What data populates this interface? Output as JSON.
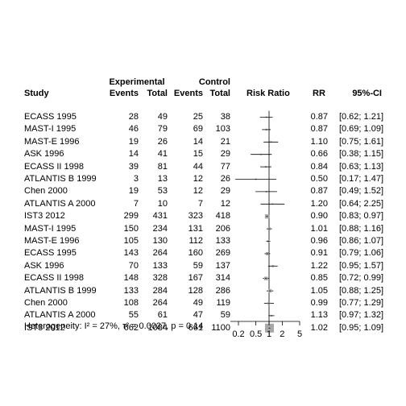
{
  "headers": {
    "experimental": "Experimental",
    "control": "Control",
    "study": "Study",
    "events_e": "Events",
    "total_e": "Total",
    "events_c": "Events",
    "total_c": "Total",
    "risk_ratio": "Risk Ratio",
    "rr": "RR",
    "ci": "95%-CI"
  },
  "footer": {
    "heterogeneity": "Heterogeneity: I² = 27%, τ² = 0.0027, p = 0.14"
  },
  "colors": {
    "square": "#a8a8a8",
    "line": "#000000",
    "axis": "#000000"
  },
  "chart_data": {
    "type": "forest",
    "x_scale": "log",
    "xlim": [
      0.17,
      6.0
    ],
    "x_ticks": [
      0.2,
      0.5,
      1,
      2,
      5
    ],
    "x_tick_labels": [
      "0.2",
      "0.5",
      "1",
      "2",
      "5"
    ],
    "reference_line": 1,
    "rows": [
      {
        "study": "ECASS 1995",
        "events_e": "28",
        "total_e": "49",
        "events_c": "25",
        "total_c": "38",
        "rr": 0.87,
        "lower": 0.62,
        "upper": 1.21,
        "rr_text": "0.87",
        "ci_text": "[0.62; 1.21]"
      },
      {
        "study": "MAST-I 1995",
        "events_e": "46",
        "total_e": "79",
        "events_c": "69",
        "total_c": "103",
        "rr": 0.87,
        "lower": 0.69,
        "upper": 1.09,
        "rr_text": "0.87",
        "ci_text": "[0.69; 1.09]"
      },
      {
        "study": "MAST-E 1996",
        "events_e": "19",
        "total_e": "26",
        "events_c": "14",
        "total_c": "21",
        "rr": 1.1,
        "lower": 0.75,
        "upper": 1.61,
        "rr_text": "1.10",
        "ci_text": "[0.75; 1.61]"
      },
      {
        "study": "ASK 1996",
        "events_e": "14",
        "total_e": "41",
        "events_c": "15",
        "total_c": "29",
        "rr": 0.66,
        "lower": 0.38,
        "upper": 1.15,
        "rr_text": "0.66",
        "ci_text": "[0.38; 1.15]"
      },
      {
        "study": "ECASS II 1998",
        "events_e": "39",
        "total_e": "81",
        "events_c": "44",
        "total_c": "77",
        "rr": 0.84,
        "lower": 0.63,
        "upper": 1.13,
        "rr_text": "0.84",
        "ci_text": "[0.63; 1.13]"
      },
      {
        "study": "ATLANTIS B 1999",
        "events_e": "3",
        "total_e": "13",
        "events_c": "12",
        "total_c": "26",
        "rr": 0.5,
        "lower": 0.17,
        "upper": 1.47,
        "rr_text": "0.50",
        "ci_text": "[0.17; 1.47]"
      },
      {
        "study": "Chen 2000",
        "events_e": "19",
        "total_e": "53",
        "events_c": "12",
        "total_c": "29",
        "rr": 0.87,
        "lower": 0.49,
        "upper": 1.52,
        "rr_text": "0.87",
        "ci_text": "[0.49; 1.52]"
      },
      {
        "study": "ATLANTIS A 2000",
        "events_e": "7",
        "total_e": "10",
        "events_c": "7",
        "total_c": "12",
        "rr": 1.2,
        "lower": 0.64,
        "upper": 2.25,
        "rr_text": "1.20",
        "ci_text": "[0.64; 2.25]"
      },
      {
        "study": "IST3 2012",
        "events_e": "299",
        "total_e": "431",
        "events_c": "323",
        "total_c": "418",
        "rr": 0.9,
        "lower": 0.83,
        "upper": 0.97,
        "rr_text": "0.90",
        "ci_text": "[0.83; 0.97]"
      },
      {
        "study": "MAST-I 1995",
        "events_e": "150",
        "total_e": "234",
        "events_c": "131",
        "total_c": "206",
        "rr": 1.01,
        "lower": 0.88,
        "upper": 1.16,
        "rr_text": "1.01",
        "ci_text": "[0.88; 1.16]"
      },
      {
        "study": "MAST-E 1996",
        "events_e": "105",
        "total_e": "130",
        "events_c": "112",
        "total_c": "133",
        "rr": 0.96,
        "lower": 0.86,
        "upper": 1.07,
        "rr_text": "0.96",
        "ci_text": "[0.86; 1.07]"
      },
      {
        "study": "ECASS 1995",
        "events_e": "143",
        "total_e": "264",
        "events_c": "160",
        "total_c": "269",
        "rr": 0.91,
        "lower": 0.79,
        "upper": 1.06,
        "rr_text": "0.91",
        "ci_text": "[0.79; 1.06]"
      },
      {
        "study": "ASK 1996",
        "events_e": "70",
        "total_e": "133",
        "events_c": "59",
        "total_c": "137",
        "rr": 1.22,
        "lower": 0.95,
        "upper": 1.57,
        "rr_text": "1.22",
        "ci_text": "[0.95; 1.57]"
      },
      {
        "study": "ECASS II 1998",
        "events_e": "148",
        "total_e": "328",
        "events_c": "167",
        "total_c": "314",
        "rr": 0.85,
        "lower": 0.72,
        "upper": 0.99,
        "rr_text": "0.85",
        "ci_text": "[0.72; 0.99]"
      },
      {
        "study": "ATLANTIS B 1999",
        "events_e": "133",
        "total_e": "284",
        "events_c": "128",
        "total_c": "286",
        "rr": 1.05,
        "lower": 0.88,
        "upper": 1.25,
        "rr_text": "1.05",
        "ci_text": "[0.88; 1.25]"
      },
      {
        "study": "Chen 2000",
        "events_e": "108",
        "total_e": "264",
        "events_c": "49",
        "total_c": "119",
        "rr": 0.99,
        "lower": 0.77,
        "upper": 1.29,
        "rr_text": "0.99",
        "ci_text": "[0.77; 1.29]"
      },
      {
        "study": "ATLANTIS A 2000",
        "events_e": "55",
        "total_e": "61",
        "events_c": "47",
        "total_c": "59",
        "rr": 1.13,
        "lower": 0.97,
        "upper": 1.32,
        "rr_text": "1.13",
        "ci_text": "[0.97; 1.32]"
      },
      {
        "study": "IST3 2012",
        "events_e": "662",
        "total_e": "1084",
        "events_c": "661",
        "total_c": "1100",
        "rr": 1.02,
        "lower": 0.95,
        "upper": 1.09,
        "rr_text": "1.02",
        "ci_text": "[0.95; 1.09]"
      }
    ]
  }
}
